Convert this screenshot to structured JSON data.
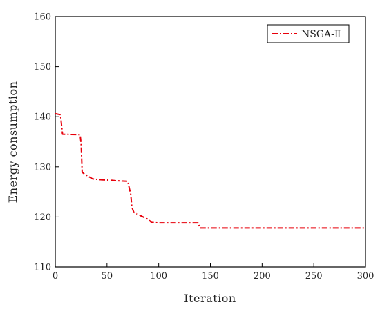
{
  "chart_data": {
    "type": "line",
    "title": "",
    "xlabel": "Iteration",
    "ylabel": "Energy consumption",
    "xlim": [
      0,
      300
    ],
    "ylim": [
      110,
      160
    ],
    "xticks": [
      0,
      50,
      100,
      150,
      200,
      250,
      300
    ],
    "yticks": [
      110,
      120,
      130,
      140,
      150,
      160
    ],
    "grid": false,
    "legend_position": "top-right",
    "series": [
      {
        "name": "NSGA-Ⅱ",
        "color": "#e8000b",
        "line_style": "dash-dot",
        "x": [
          0,
          5,
          7,
          24,
          25,
          26,
          28,
          36,
          40,
          45,
          55,
          60,
          70,
          73,
          74,
          76,
          80,
          90,
          93,
          100,
          105,
          110,
          120,
          130,
          138,
          140,
          150,
          160,
          200,
          250,
          300
        ],
        "y": [
          140.6,
          140.4,
          136.5,
          136.4,
          134.5,
          128.9,
          128.6,
          127.6,
          127.5,
          127.4,
          127.3,
          127.2,
          127.1,
          124.5,
          122.0,
          120.9,
          120.5,
          119.5,
          118.9,
          118.8,
          118.8,
          118.8,
          118.8,
          118.8,
          118.8,
          117.8,
          117.8,
          117.8,
          117.8,
          117.8,
          117.8
        ]
      }
    ]
  }
}
